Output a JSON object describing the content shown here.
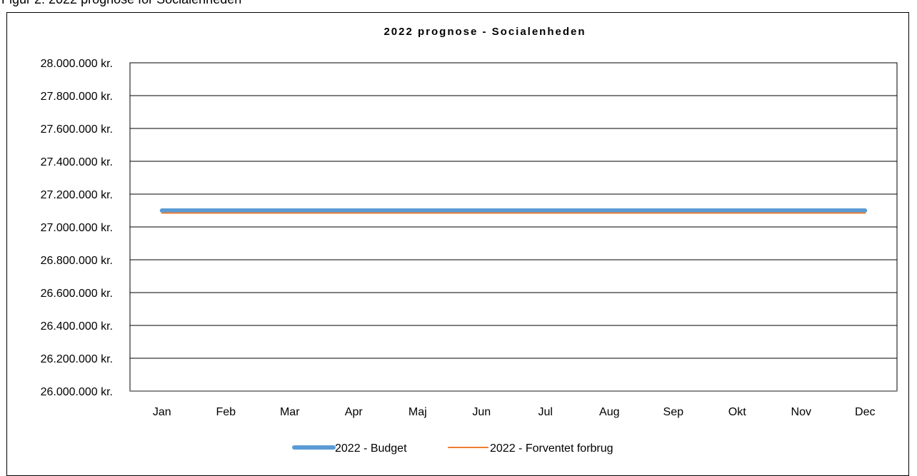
{
  "page": {
    "caption": "Figur 2: 2022 prognose for Socialenheden"
  },
  "chart_data": {
    "type": "line",
    "title": "2022 prognose - Socialenheden",
    "xlabel": "",
    "ylabel": "",
    "categories": [
      "Jan",
      "Feb",
      "Mar",
      "Apr",
      "Maj",
      "Jun",
      "Jul",
      "Aug",
      "Sep",
      "Okt",
      "Nov",
      "Dec"
    ],
    "ylim": [
      26000000,
      28000000
    ],
    "yticks": [
      26000000,
      26200000,
      26400000,
      26600000,
      26800000,
      27000000,
      27200000,
      27400000,
      27600000,
      27800000,
      28000000
    ],
    "ytick_labels": [
      "26.000.000 kr.",
      "26.200.000 kr.",
      "26.400.000 kr.",
      "26.600.000 kr.",
      "26.800.000 kr.",
      "27.000.000 kr.",
      "27.200.000 kr.",
      "27.400.000 kr.",
      "27.600.000 kr.",
      "27.800.000 kr.",
      "28.000.000 kr."
    ],
    "grid": true,
    "legend": "bottom",
    "series": [
      {
        "name": "2022 - Budget",
        "color": "#5b9bd5",
        "values": [
          27100000,
          27100000,
          27100000,
          27100000,
          27100000,
          27100000,
          27100000,
          27100000,
          27100000,
          27100000,
          27100000,
          27100000
        ]
      },
      {
        "name": "2022 - Forventet forbrug",
        "color": "#ed7d31",
        "values": [
          27085000,
          27085000,
          27085000,
          27085000,
          27085000,
          27085000,
          27085000,
          27085000,
          27085000,
          27085000,
          27085000,
          27085000
        ]
      }
    ]
  }
}
